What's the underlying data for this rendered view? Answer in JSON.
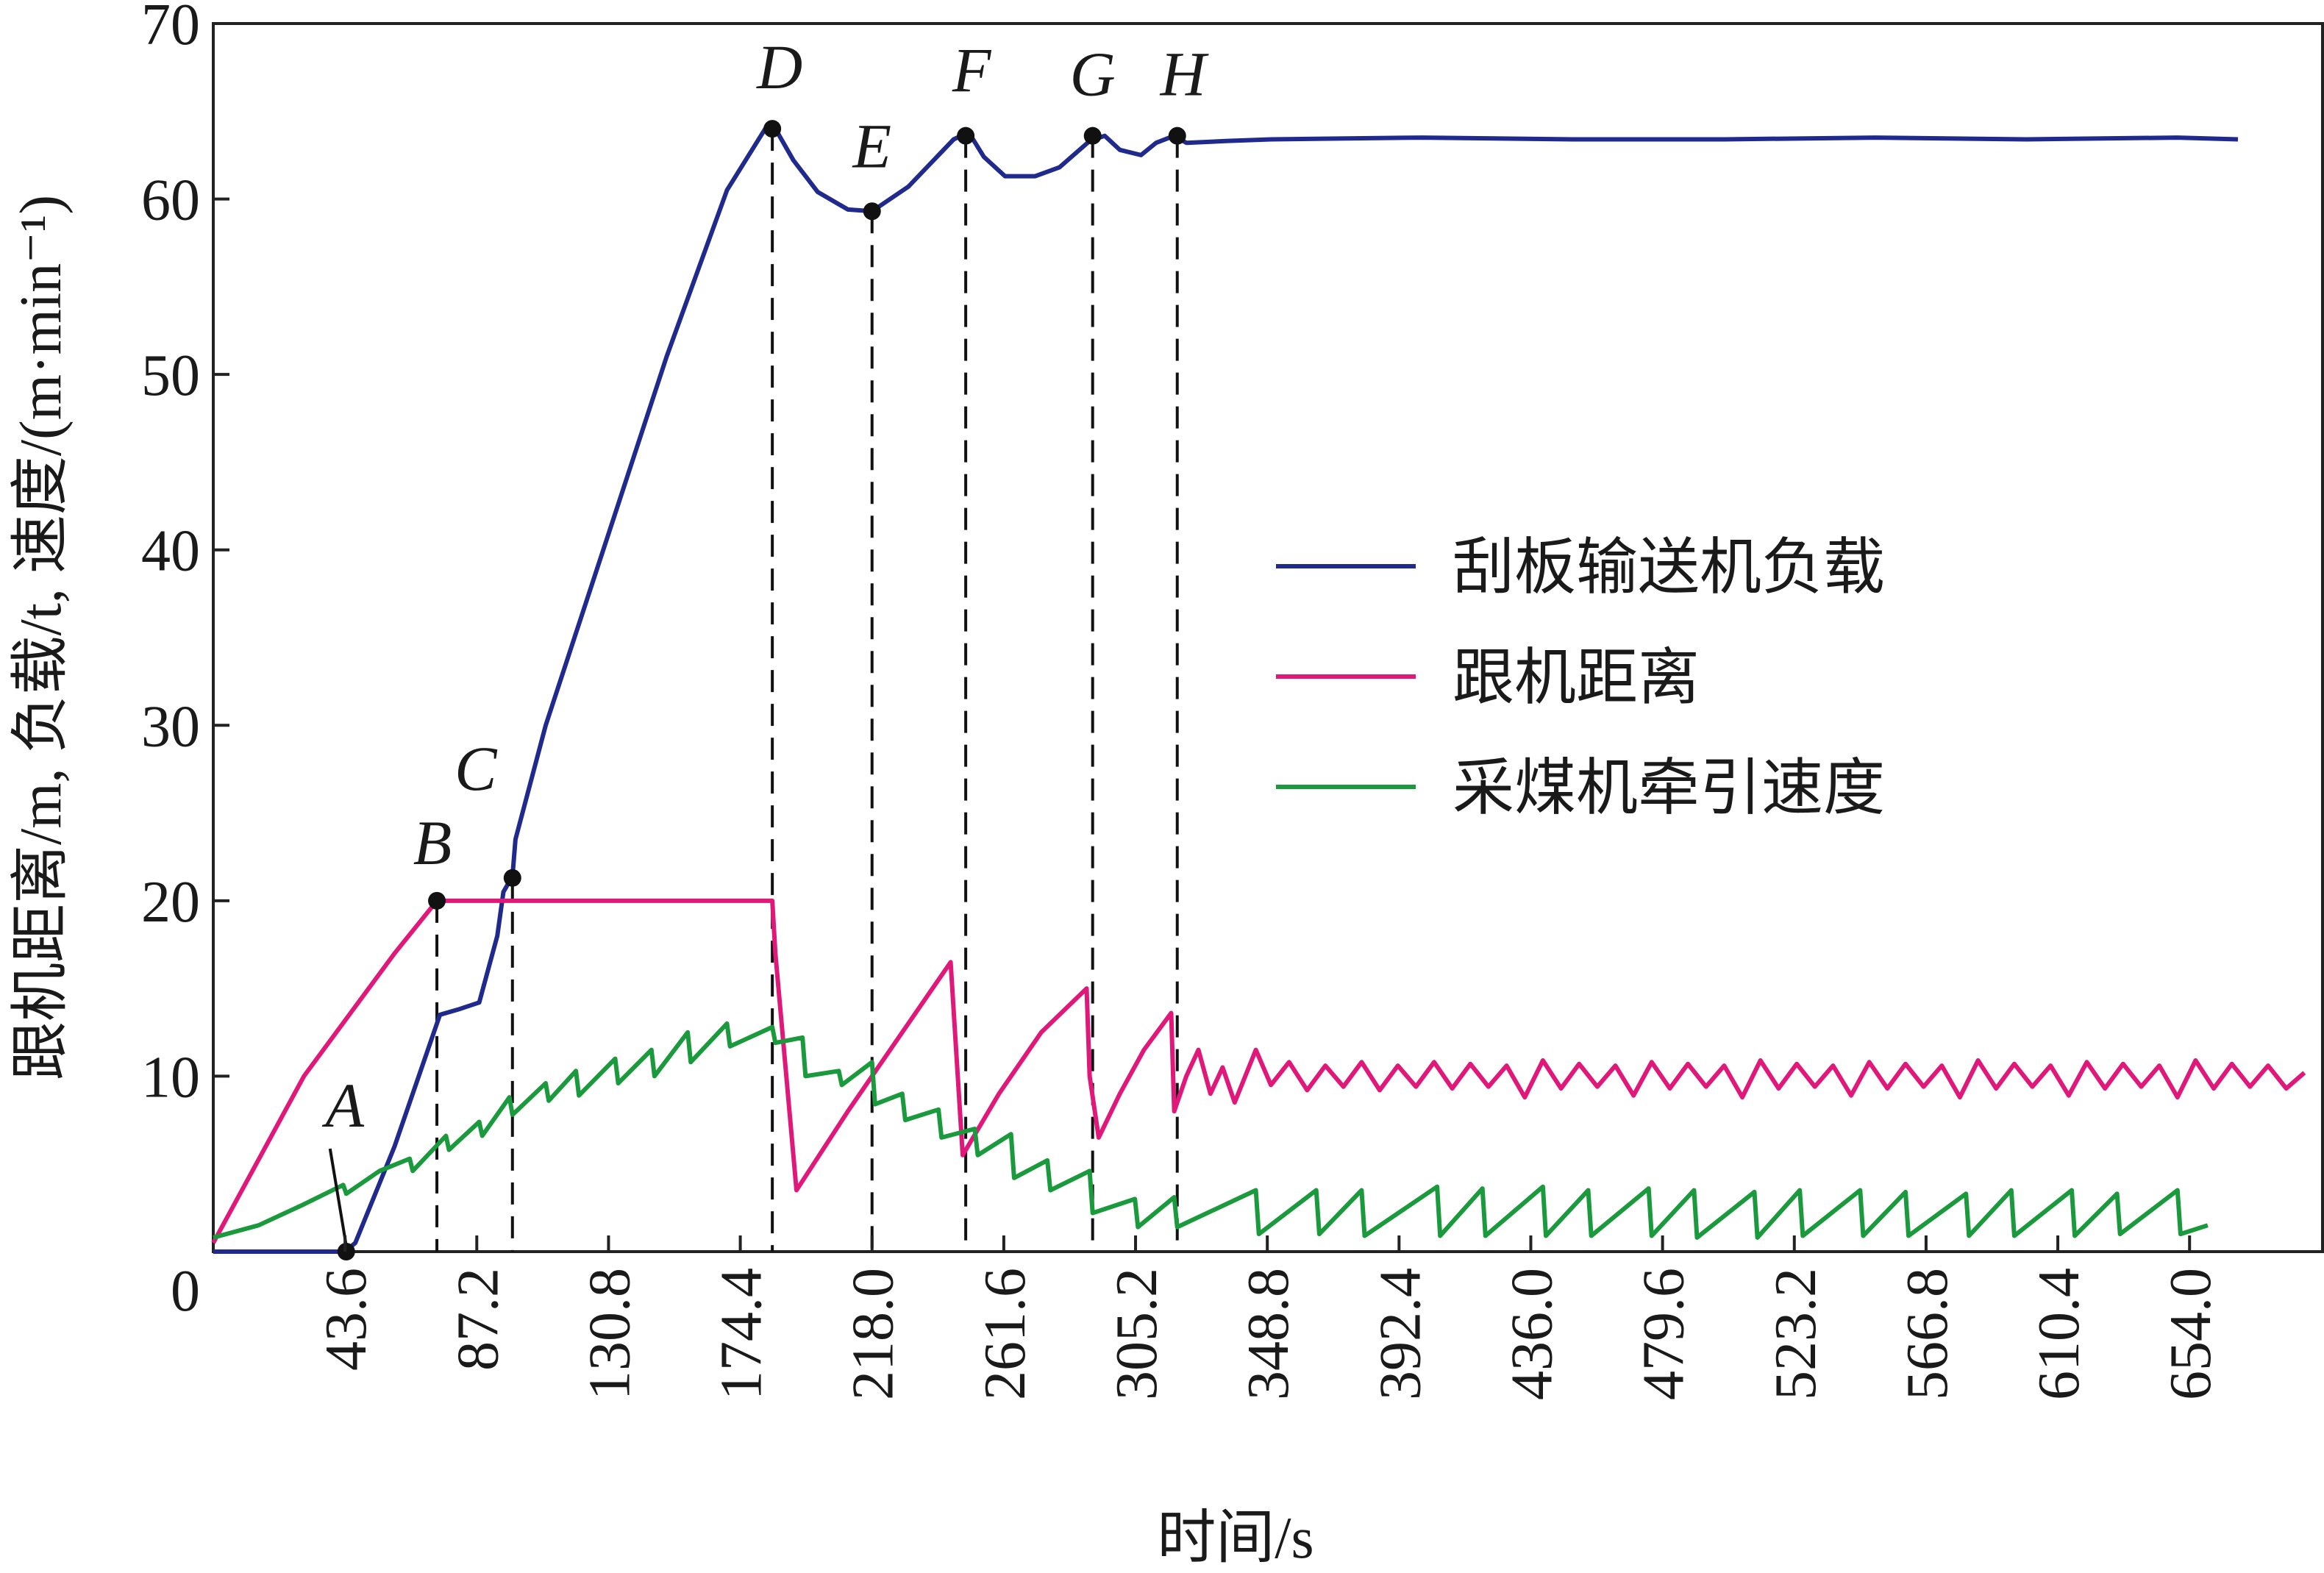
{
  "chart_data": {
    "type": "line",
    "xlabel": "时间/s",
    "ylabel": "跟机距离/m, 负载/t, 速度/(m·min⁻¹)",
    "x_tick_labels": [
      "43.6",
      "87.2",
      "130.8",
      "174.4",
      "218.0",
      "261.6",
      "305.2",
      "348.8",
      "392.4",
      "436.0",
      "479.6",
      "523.2",
      "566.8",
      "610.4",
      "654.0"
    ],
    "y_ticks": [
      0,
      10,
      20,
      30,
      40,
      50,
      60,
      70
    ],
    "xlim": [
      0,
      698
    ],
    "ylim": [
      0,
      70
    ],
    "grid": false,
    "legend_position": "right-middle",
    "series": [
      {
        "name": "刮板输送机负载",
        "color": "#1f2a8c",
        "x": [
          0,
          43.6,
          47,
          60,
          75,
          81,
          88,
          94,
          96,
          99,
          100,
          110,
          130,
          150,
          170,
          183,
          186,
          192,
          200,
          210,
          218,
          230,
          245,
          250,
          255,
          262,
          272,
          280,
          290,
          295,
          300,
          307,
          312,
          318,
          322,
          335,
          350,
          400,
          450,
          500,
          550,
          600,
          650,
          670
        ],
        "y": [
          0,
          0,
          0.5,
          6,
          13.5,
          13.8,
          14.2,
          18,
          20.5,
          21.4,
          23.5,
          30,
          40.5,
          51,
          60.5,
          64.1,
          64,
          62.2,
          60.4,
          59.4,
          59.3,
          60.7,
          63.4,
          63.8,
          62.4,
          61.3,
          61.3,
          61.8,
          63.3,
          63.6,
          62.8,
          62.5,
          63.2,
          63.6,
          63.2,
          63.3,
          63.4,
          63.5,
          63.4,
          63.4,
          63.5,
          63.4,
          63.5,
          63.4
        ]
      },
      {
        "name": "跟机距离",
        "color": "#e0187a",
        "x": [
          0,
          30,
          60,
          74,
          80,
          185,
          186,
          193,
          210,
          230,
          244,
          246,
          248,
          260,
          274,
          289,
          290,
          293,
          300,
          308,
          317,
          318,
          322,
          326,
          330,
          334,
          338,
          345,
          350,
          356,
          362,
          368,
          374,
          380,
          386,
          392,
          398,
          404,
          410,
          416,
          422,
          428,
          434,
          440,
          446,
          452,
          458,
          464,
          470,
          476,
          482,
          488,
          494,
          500,
          506,
          512,
          518,
          524,
          530,
          536,
          542,
          548,
          554,
          560,
          566,
          572,
          578,
          584,
          590,
          596,
          602,
          608,
          614,
          620,
          626,
          632,
          638,
          644,
          650,
          656,
          662,
          668,
          674,
          680,
          686,
          692
        ],
        "y": [
          0.5,
          10,
          17,
          20,
          20,
          20,
          17,
          3.5,
          8,
          13,
          16.5,
          11,
          5.5,
          9,
          12.5,
          15,
          10,
          6.5,
          9,
          11.5,
          13.6,
          8,
          10,
          11.5,
          9,
          10.5,
          8.5,
          11.5,
          9.5,
          10.8,
          9.2,
          10.6,
          9.4,
          10.8,
          9.2,
          10.6,
          9.4,
          10.8,
          9.3,
          10.7,
          9.4,
          10.6,
          8.8,
          10.9,
          9.3,
          10.7,
          9.4,
          10.6,
          8.9,
          10.8,
          9.3,
          10.7,
          9.4,
          10.6,
          8.8,
          10.9,
          9.3,
          10.7,
          9.4,
          10.6,
          8.9,
          10.8,
          9.3,
          10.7,
          9.4,
          10.6,
          8.8,
          10.9,
          9.3,
          10.7,
          9.4,
          10.6,
          8.9,
          10.8,
          9.3,
          10.7,
          9.4,
          10.6,
          8.8,
          10.9,
          9.3,
          10.7,
          9.4,
          10.6,
          9.3,
          10.2
        ]
      },
      {
        "name": "采煤机牵引速度",
        "color": "#1a9a3c",
        "x": [
          0,
          15,
          30,
          43,
          44,
          55,
          65,
          66,
          77,
          78,
          88,
          89,
          98,
          99,
          110,
          111,
          120,
          121,
          133,
          134,
          145,
          146,
          157,
          158,
          170,
          171,
          185,
          186,
          195,
          196,
          207,
          208,
          218,
          219,
          228,
          229,
          240,
          241,
          252,
          253,
          264,
          265,
          276,
          277,
          290,
          291,
          305,
          306,
          318,
          319,
          345,
          346,
          365,
          366,
          380,
          381,
          405,
          406,
          420,
          421,
          440,
          441,
          455,
          456,
          475,
          476,
          490,
          491,
          510,
          511,
          525,
          526,
          545,
          546,
          560,
          561,
          580,
          581,
          595,
          596,
          615,
          616,
          630,
          631,
          650,
          651,
          660
        ],
        "y": [
          0.8,
          1.5,
          2.7,
          3.8,
          3.3,
          4.6,
          5.3,
          4.6,
          6.6,
          5.8,
          7.4,
          6.6,
          8.8,
          7.8,
          9.6,
          8.6,
          10.3,
          8.9,
          11,
          9.6,
          11.5,
          10,
          12.5,
          10.8,
          13,
          11.7,
          12.8,
          11.9,
          12.2,
          10,
          10.3,
          9.5,
          10.8,
          8.4,
          9,
          7.5,
          8.1,
          6.5,
          7,
          5.5,
          6.7,
          4.2,
          5.2,
          3.5,
          4.6,
          2.2,
          3,
          1.4,
          3.1,
          1.4,
          3.5,
          1,
          3.5,
          1,
          3.5,
          0.9,
          3.7,
          0.9,
          3.6,
          0.9,
          3.7,
          0.9,
          3.5,
          0.9,
          3.6,
          0.9,
          3.5,
          0.8,
          3.4,
          0.8,
          3.5,
          0.9,
          3.5,
          0.9,
          3.4,
          0.9,
          3.3,
          0.9,
          3.5,
          0.9,
          3.5,
          0.9,
          3.3,
          1,
          3.5,
          1,
          1.5
        ]
      }
    ],
    "point_labels": [
      {
        "label": "A",
        "x": 44,
        "y": 0
      },
      {
        "label": "B",
        "x": 74,
        "y": 20
      },
      {
        "label": "C",
        "x": 99,
        "y": 21.3
      },
      {
        "label": "D",
        "x": 185,
        "y": 64
      },
      {
        "label": "E",
        "x": 218,
        "y": 59.3
      },
      {
        "label": "F",
        "x": 249,
        "y": 63.6
      },
      {
        "label": "G",
        "x": 291,
        "y": 63.6
      },
      {
        "label": "H",
        "x": 319,
        "y": 63.6
      }
    ]
  }
}
